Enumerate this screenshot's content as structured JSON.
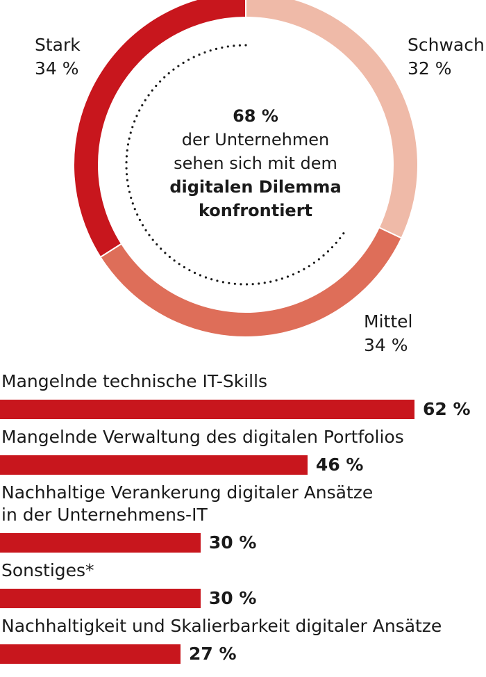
{
  "colors": {
    "stark": "#c8161d",
    "mittel": "#de6e59",
    "schwach": "#efbaa8",
    "bar": "#c8161d",
    "text": "#1a1a1a"
  },
  "center": {
    "line1": "68 %",
    "line2": "der Unternehmen",
    "line3": "sehen sich mit dem",
    "line4": "digitalen Dilemma",
    "line5": "konfrontiert"
  },
  "chart_data": [
    {
      "type": "pie",
      "variant": "donut",
      "slices": [
        {
          "label": "Schwach",
          "value": 32,
          "value_label": "32 %"
        },
        {
          "label": "Mittel",
          "value": 34,
          "value_label": "34 %"
        },
        {
          "label": "Stark",
          "value": 34,
          "value_label": "34 %"
        }
      ]
    },
    {
      "type": "bar",
      "orientation": "horizontal",
      "categories": [
        [
          "Mangelnde technische IT-Skills"
        ],
        [
          "Mangelnde Verwaltung des digitalen Portfolios"
        ],
        [
          "Nachhaltige Verankerung digitaler Ansätze",
          "in der Unternehmens-IT"
        ],
        [
          "Sonstiges*"
        ],
        [
          "Nachhaltigkeit und Skalierbarkeit digitaler Ansätze"
        ]
      ],
      "values": [
        62,
        46,
        30,
        30,
        27
      ],
      "value_labels": [
        "62 %",
        "46 %",
        "30 %",
        "30 %",
        "27 %"
      ],
      "xlim": [
        0,
        100
      ]
    }
  ]
}
